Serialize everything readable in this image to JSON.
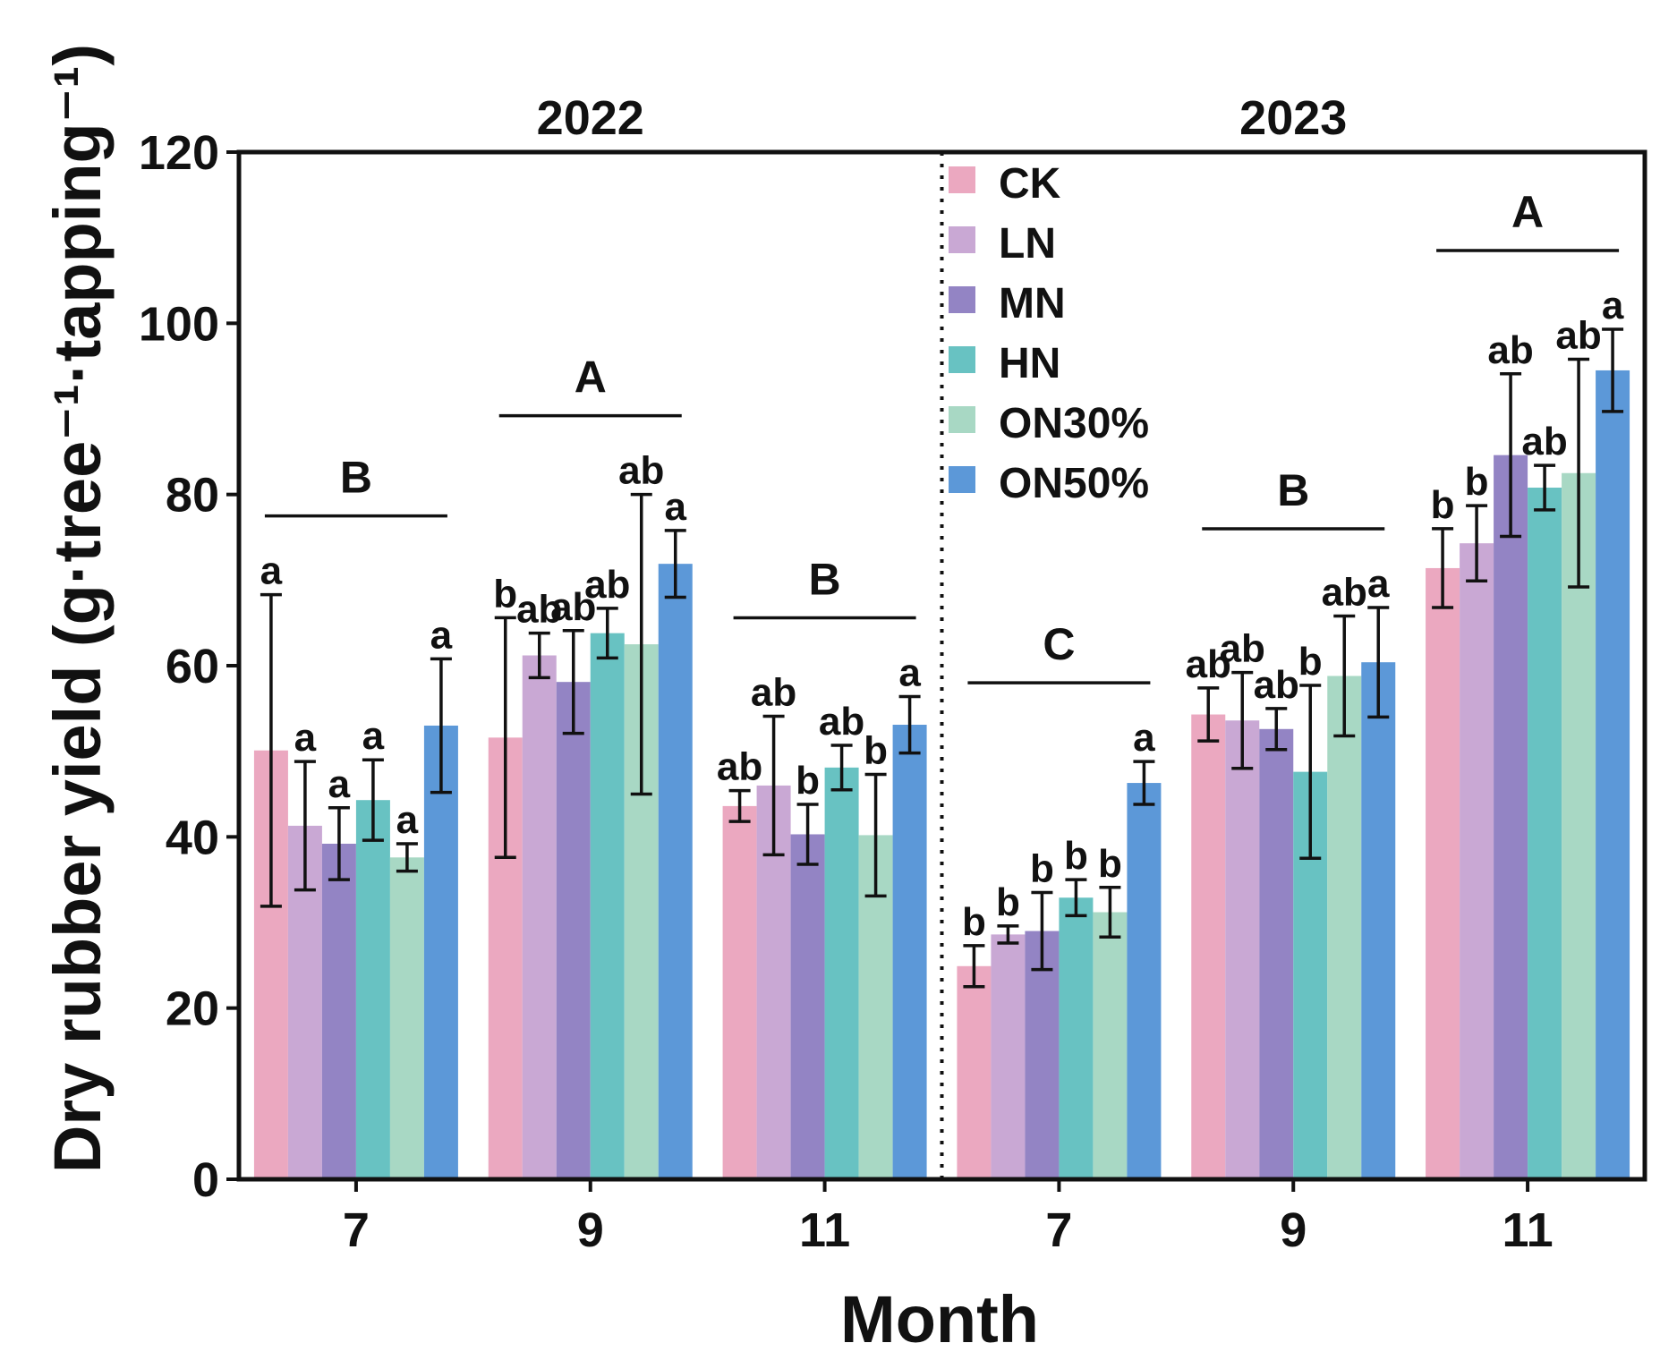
{
  "chart_data": {
    "type": "bar",
    "ylabel": "Dry rubber yield (g·tree⁻¹·tapping⁻¹)",
    "xlabel": "Month",
    "ylim": [
      0,
      120
    ],
    "yticks": [
      0,
      20,
      40,
      60,
      80,
      100,
      120
    ],
    "years": [
      "2022",
      "2023"
    ],
    "legend_position": "top-center",
    "series": [
      {
        "name": "CK",
        "color": "#eba8c0"
      },
      {
        "name": "LN",
        "color": "#c9a8d4"
      },
      {
        "name": "MN",
        "color": "#9384c4"
      },
      {
        "name": "HN",
        "color": "#68c2c2"
      },
      {
        "name": "ON30%",
        "color": "#a8d8c4"
      },
      {
        "name": "ON50%",
        "color": "#5c98d8"
      }
    ],
    "groups": [
      {
        "year": "2022",
        "month": "7",
        "group_letter": "B",
        "values": [
          50.1,
          41.3,
          39.2,
          44.3,
          37.6,
          53.0
        ],
        "errors": [
          18.2,
          7.5,
          4.2,
          4.7,
          1.6,
          7.8
        ],
        "letters": [
          "a",
          "a",
          "a",
          "a",
          "a",
          "a"
        ]
      },
      {
        "year": "2022",
        "month": "9",
        "group_letter": "A",
        "values": [
          51.6,
          61.2,
          58.1,
          63.8,
          62.5,
          71.9
        ],
        "errors": [
          14.0,
          2.6,
          6.0,
          2.9,
          17.5,
          3.9
        ],
        "letters": [
          "b",
          "ab",
          "ab",
          "ab",
          "ab",
          "a"
        ]
      },
      {
        "year": "2022",
        "month": "11",
        "group_letter": "B",
        "values": [
          43.6,
          46.0,
          40.3,
          48.1,
          40.2,
          53.1
        ],
        "errors": [
          1.8,
          8.1,
          3.5,
          2.6,
          7.1,
          3.3
        ],
        "letters": [
          "ab",
          "ab",
          "b",
          "ab",
          "b",
          "a"
        ]
      },
      {
        "year": "2023",
        "month": "7",
        "group_letter": "C",
        "values": [
          24.9,
          28.6,
          29.0,
          32.9,
          31.2,
          46.3
        ],
        "errors": [
          2.4,
          1.0,
          4.5,
          2.1,
          2.9,
          2.5
        ],
        "letters": [
          "b",
          "b",
          "b",
          "b",
          "b",
          "a"
        ]
      },
      {
        "year": "2023",
        "month": "9",
        "group_letter": "B",
        "values": [
          54.3,
          53.6,
          52.6,
          47.6,
          58.8,
          60.4
        ],
        "errors": [
          3.1,
          5.6,
          2.4,
          10.1,
          7.0,
          6.4
        ],
        "letters": [
          "ab",
          "ab",
          "ab",
          "b",
          "ab",
          "a"
        ]
      },
      {
        "year": "2023",
        "month": "11",
        "group_letter": "A",
        "values": [
          71.4,
          74.3,
          84.6,
          80.8,
          82.5,
          94.5
        ],
        "errors": [
          4.6,
          4.4,
          9.5,
          2.6,
          13.3,
          4.8
        ],
        "letters": [
          "b",
          "b",
          "ab",
          "ab",
          "ab",
          "a"
        ]
      }
    ]
  }
}
